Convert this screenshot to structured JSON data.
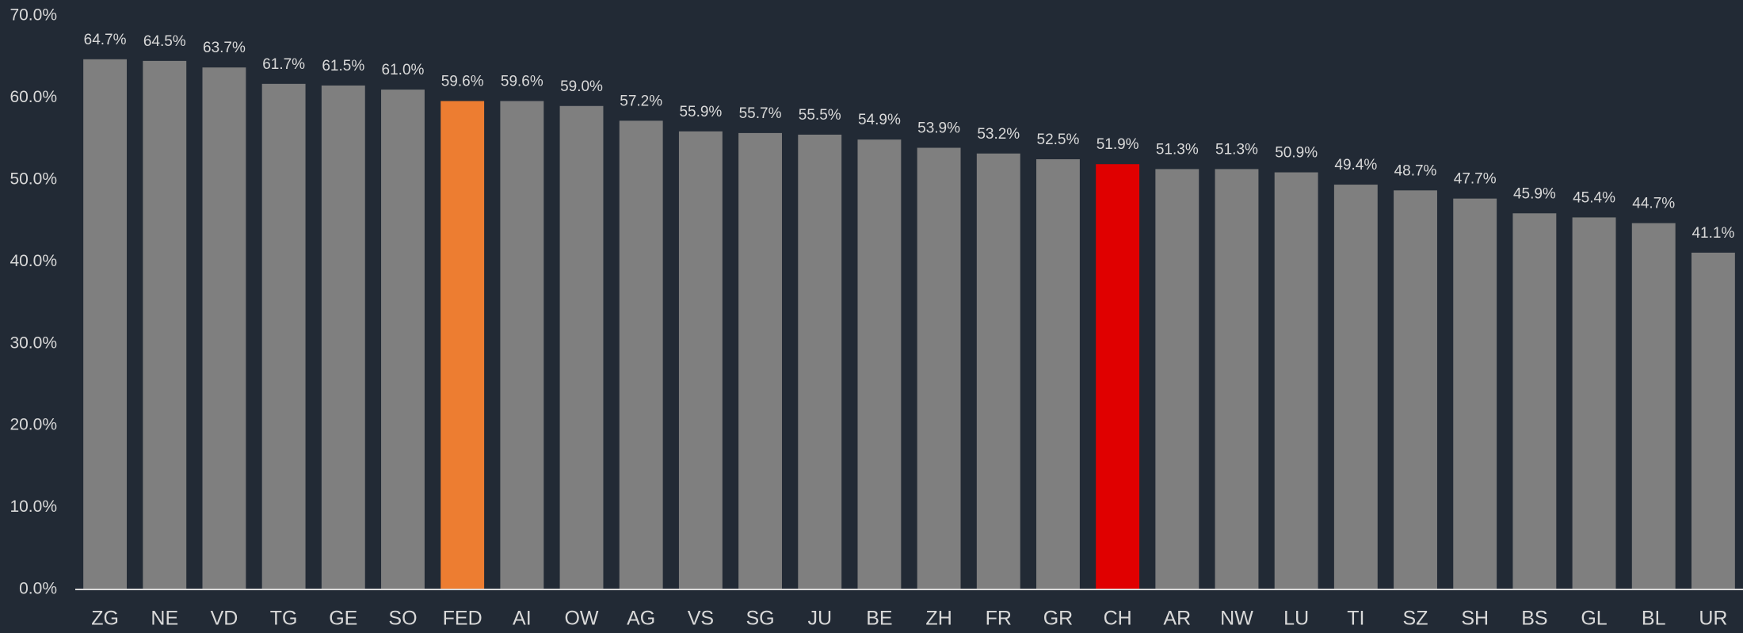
{
  "chart_data": {
    "type": "bar",
    "categories": [
      "ZG",
      "NE",
      "VD",
      "TG",
      "GE",
      "SO",
      "FED",
      "AI",
      "OW",
      "AG",
      "VS",
      "SG",
      "JU",
      "BE",
      "ZH",
      "FR",
      "GR",
      "CH",
      "AR",
      "NW",
      "LU",
      "TI",
      "SZ",
      "SH",
      "BS",
      "GL",
      "BL",
      "UR"
    ],
    "values": [
      64.7,
      64.5,
      63.7,
      61.7,
      61.5,
      61.0,
      59.6,
      59.6,
      59.0,
      57.2,
      55.9,
      55.7,
      55.5,
      54.9,
      53.9,
      53.2,
      52.5,
      51.9,
      51.3,
      51.3,
      50.9,
      49.4,
      48.7,
      47.7,
      45.9,
      45.4,
      44.7,
      41.1
    ],
    "value_labels": [
      "64.7%",
      "64.5%",
      "63.7%",
      "61.7%",
      "61.5%",
      "61.0%",
      "59.6%",
      "59.6%",
      "59.0%",
      "57.2%",
      "55.9%",
      "55.7%",
      "55.5%",
      "54.9%",
      "53.9%",
      "53.2%",
      "52.5%",
      "51.9%",
      "51.3%",
      "51.3%",
      "50.9%",
      "49.4%",
      "48.7%",
      "47.7%",
      "45.9%",
      "45.4%",
      "44.7%",
      "41.1%"
    ],
    "colors": [
      "#7f7f7f",
      "#7f7f7f",
      "#7f7f7f",
      "#7f7f7f",
      "#7f7f7f",
      "#7f7f7f",
      "#ed7d31",
      "#7f7f7f",
      "#7f7f7f",
      "#7f7f7f",
      "#7f7f7f",
      "#7f7f7f",
      "#7f7f7f",
      "#7f7f7f",
      "#7f7f7f",
      "#7f7f7f",
      "#7f7f7f",
      "#e00000",
      "#7f7f7f",
      "#7f7f7f",
      "#7f7f7f",
      "#7f7f7f",
      "#7f7f7f",
      "#7f7f7f",
      "#7f7f7f",
      "#7f7f7f",
      "#7f7f7f",
      "#7f7f7f"
    ],
    "ylim": [
      0,
      70
    ],
    "yticks": [
      {
        "value": 0,
        "label": "0.0%"
      },
      {
        "value": 10,
        "label": "10.0%"
      },
      {
        "value": 20,
        "label": "20.0%"
      },
      {
        "value": 30,
        "label": "30.0%"
      },
      {
        "value": 40,
        "label": "40.0%"
      },
      {
        "value": 50,
        "label": "50.0%"
      },
      {
        "value": 60,
        "label": "60.0%"
      },
      {
        "value": 70,
        "label": "70.0%"
      }
    ],
    "grid": false
  }
}
